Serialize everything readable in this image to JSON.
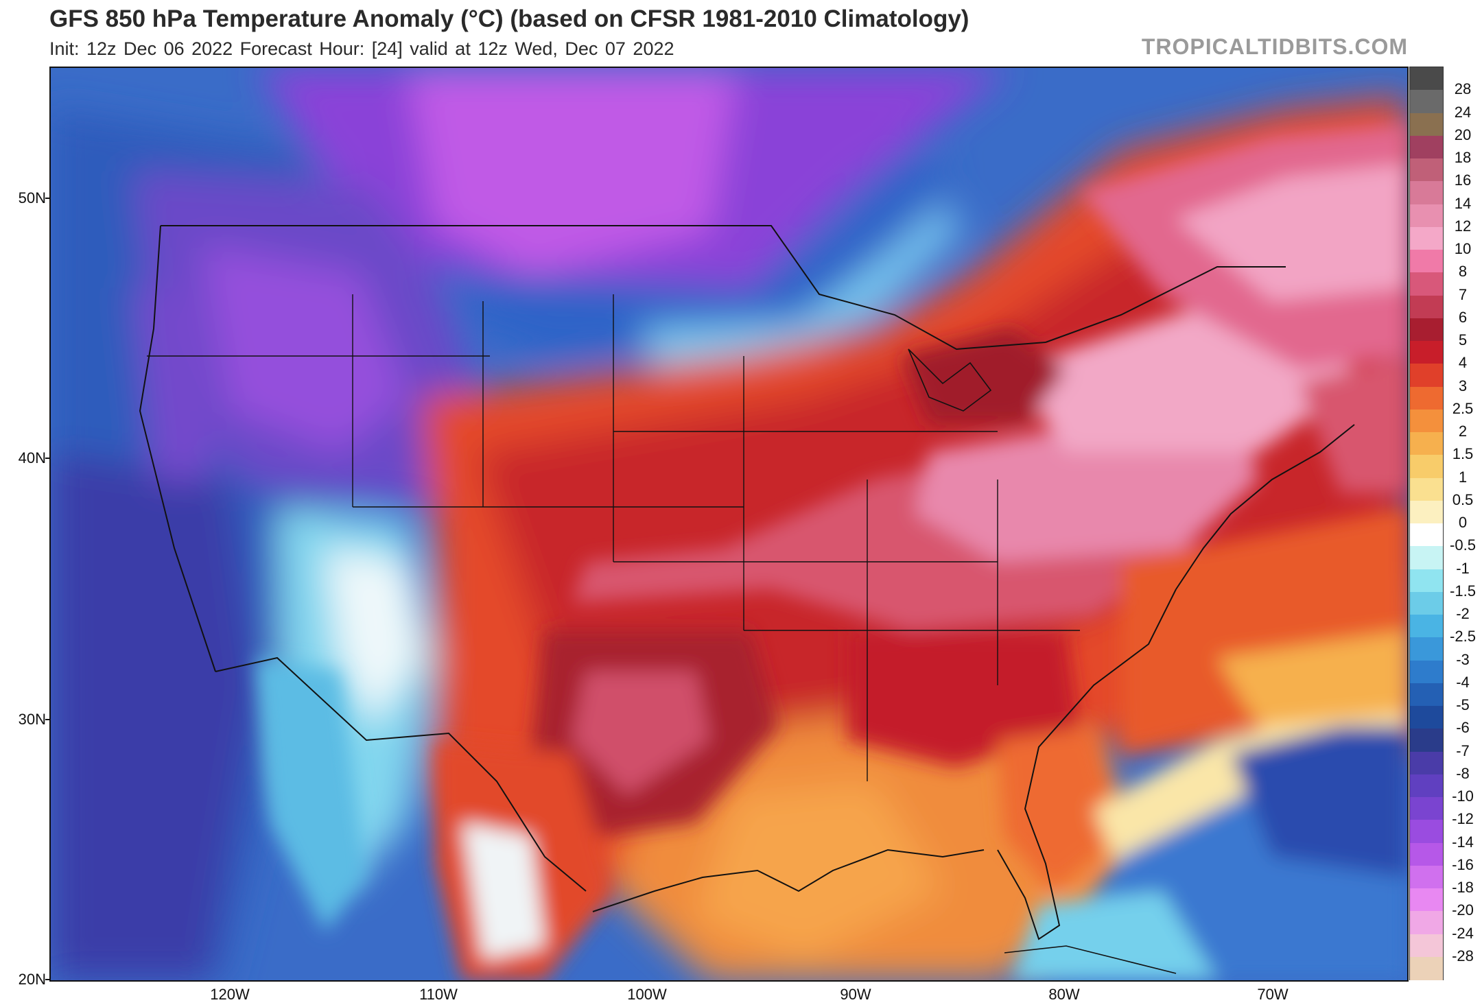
{
  "header": {
    "title": "GFS 850 hPa Temperature Anomaly (°C) (based on CFSR 1981-2010 Climatology)",
    "subtitle": "Init: 12z Dec 06 2022   Forecast Hour: [24]   valid at 12z Wed, Dec 07 2022",
    "site": "TROPICALTIDBITS.COM"
  },
  "axes": {
    "lat_labels": [
      "50N",
      "40N",
      "30N",
      "20N"
    ],
    "lon_labels": [
      "120W",
      "110W",
      "100W",
      "90W",
      "80W",
      "70W"
    ]
  },
  "colorbar": {
    "labels": [
      "28",
      "24",
      "20",
      "18",
      "16",
      "14",
      "12",
      "10",
      "8",
      "7",
      "6",
      "5",
      "4",
      "3",
      "2.5",
      "2",
      "1.5",
      "1",
      "0.5",
      "0",
      "-0.5",
      "-1",
      "-1.5",
      "-2",
      "-2.5",
      "-3",
      "-4",
      "-5",
      "-6",
      "-7",
      "-8",
      "-10",
      "-12",
      "-14",
      "-16",
      "-18",
      "-20",
      "-24",
      "-28"
    ],
    "colors": [
      "#4a4a4a",
      "#6a6a6a",
      "#8a7050",
      "#a04060",
      "#c06078",
      "#d87a98",
      "#e890b0",
      "#f4a8c8",
      "#f07aa8",
      "#d8587a",
      "#c23c54",
      "#a81e30",
      "#c81e2a",
      "#e0402a",
      "#ee6a30",
      "#f4903c",
      "#f6b04e",
      "#f8cc6a",
      "#fae090",
      "#fcf0c0",
      "#ffffff",
      "#c8f4f4",
      "#90e4f0",
      "#6ccce8",
      "#4ab4e4",
      "#3a98da",
      "#2e7ccc",
      "#2460b4",
      "#1e4a9c",
      "#2a3c8a",
      "#4a3ca8",
      "#6040c0",
      "#7a44d0",
      "#9a4ce0",
      "#b658e8",
      "#d070ee",
      "#e888f2",
      "#f0a8e6",
      "#f4c6d8",
      "#ecd2b8"
    ]
  },
  "map": {
    "colors": {
      "deep_purple": "#7a3ed4",
      "violet": "#9a4ce0",
      "magenta": "#c05ae6",
      "navy": "#2a3c9c",
      "blue": "#2e6cc8",
      "mid_blue": "#3a88d8",
      "cyan": "#74d0ec",
      "white": "#f6f6f6",
      "cream": "#fae6a8",
      "orange": "#f08a3c",
      "red_orange": "#e4502c",
      "red": "#c82428",
      "dark_red": "#a8202e",
      "rose": "#d85a78",
      "pink": "#e884a8",
      "light_pink": "#f2a2c4"
    }
  }
}
